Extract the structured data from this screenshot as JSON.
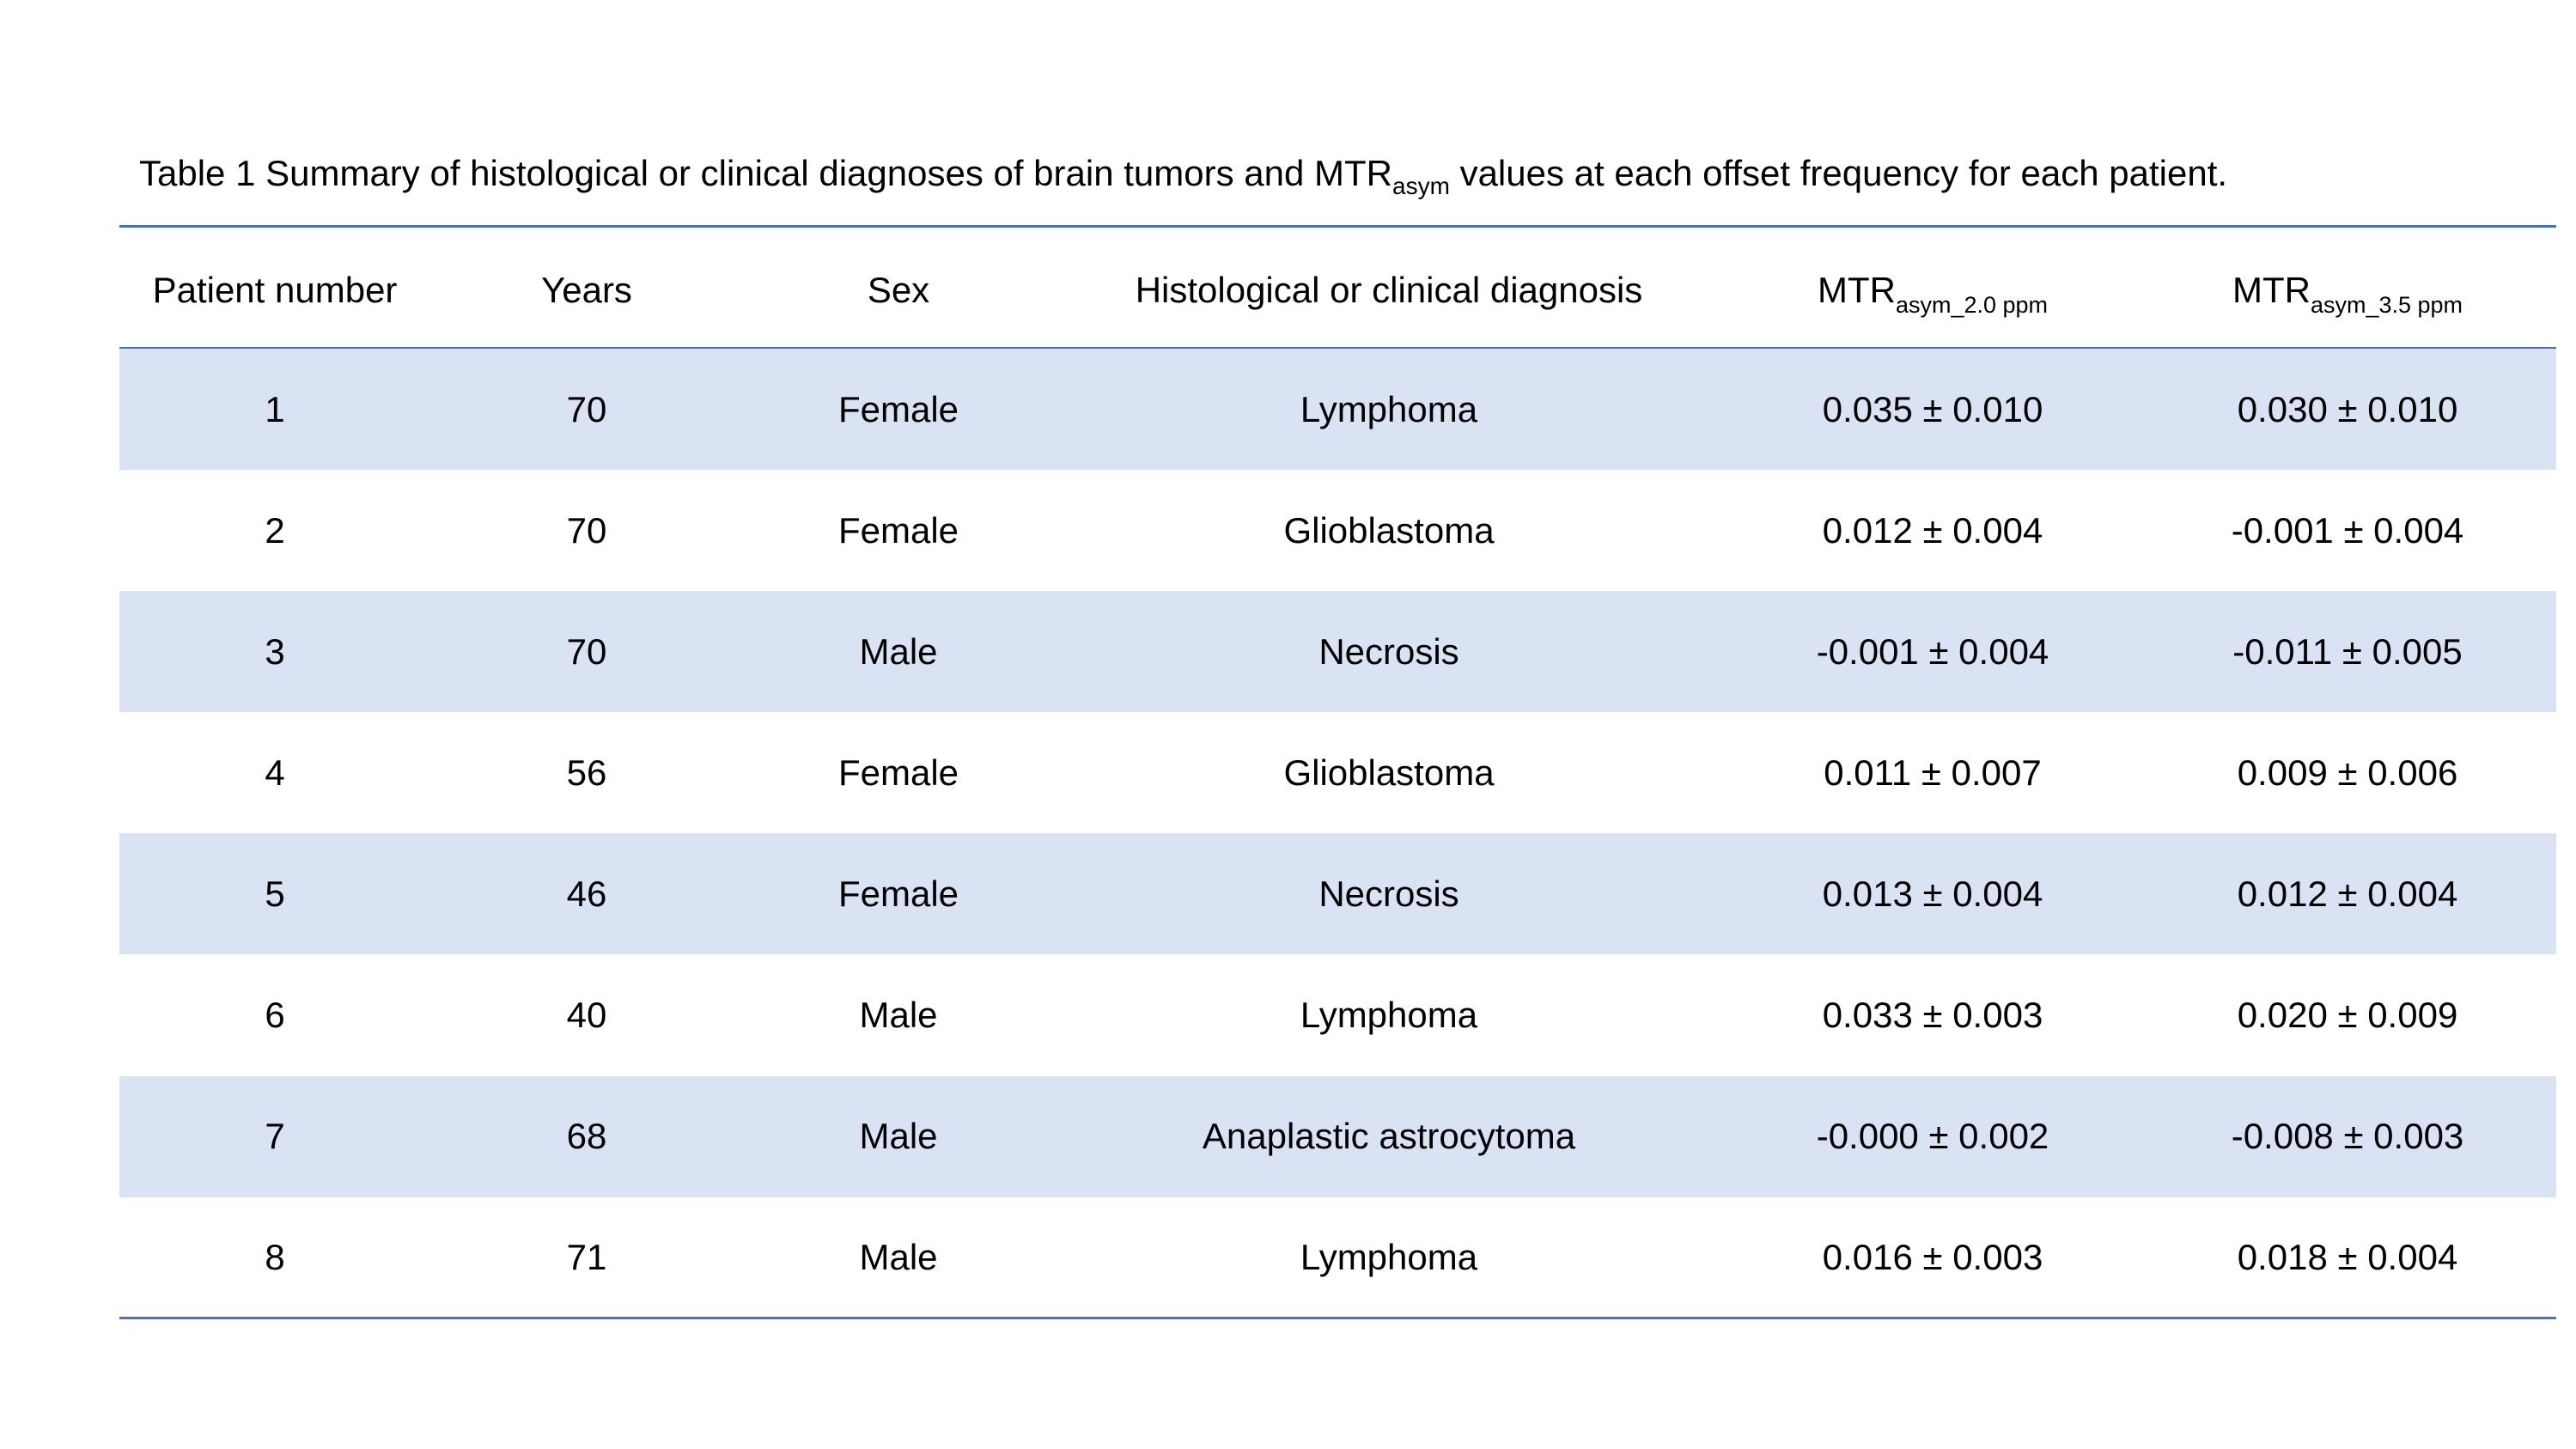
{
  "caption": {
    "prefix": "Table 1 Summary of histological or clinical diagnoses of brain tumors and MTR",
    "subscript": "asym",
    "suffix": " values at each offset frequency for each patient."
  },
  "table": {
    "headers": [
      {
        "main": "Patient number"
      },
      {
        "main": "Years"
      },
      {
        "main": "Sex"
      },
      {
        "main": "Histological or clinical diagnosis"
      },
      {
        "main": "MTR",
        "sub": "asym_2.0 ppm"
      },
      {
        "main": "MTR",
        "sub": "asym_3.5 ppm"
      }
    ],
    "rows": [
      [
        1,
        70,
        "Female",
        "Lymphoma",
        "0.035 ± 0.010",
        "0.030 ± 0.010"
      ],
      [
        2,
        70,
        "Female",
        "Glioblastoma",
        "0.012 ± 0.004",
        "-0.001 ± 0.004"
      ],
      [
        3,
        70,
        "Male",
        "Necrosis",
        "-0.001 ± 0.004",
        "-0.011 ± 0.005"
      ],
      [
        4,
        56,
        "Female",
        "Glioblastoma",
        "0.011 ± 0.007",
        "0.009 ± 0.006"
      ],
      [
        5,
        46,
        "Female",
        "Necrosis",
        "0.013 ± 0.004",
        "0.012 ± 0.004"
      ],
      [
        6,
        40,
        "Male",
        "Lymphoma",
        "0.033 ± 0.003",
        "0.020 ± 0.009"
      ],
      [
        7,
        68,
        "Male",
        "Anaplastic astrocytoma",
        "-0.000 ± 0.002",
        "-0.008 ± 0.003"
      ],
      [
        8,
        71,
        "Male",
        "Lymphoma",
        "0.016 ± 0.003",
        "0.018 ± 0.004"
      ]
    ]
  }
}
